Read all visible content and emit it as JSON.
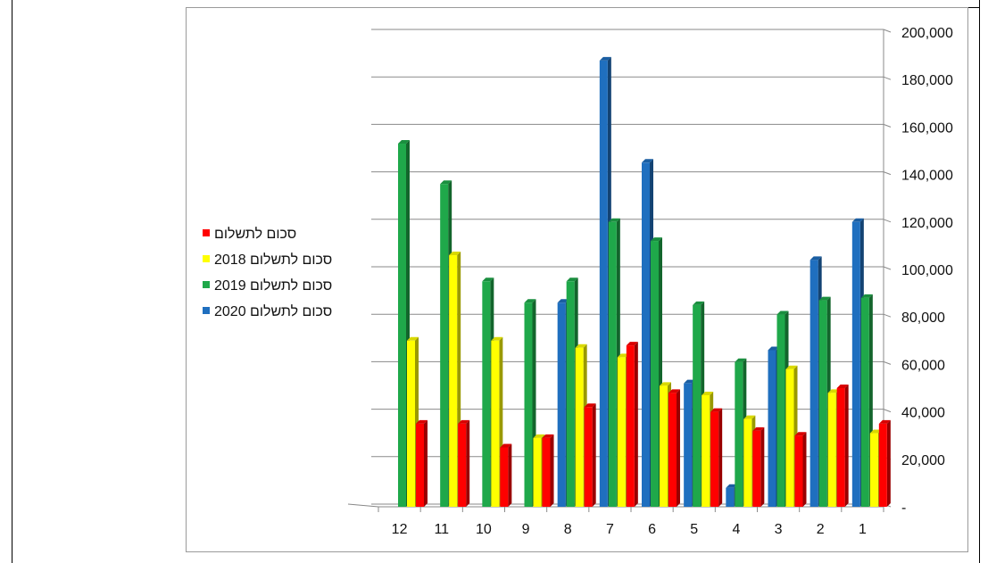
{
  "chart_data": {
    "type": "bar",
    "categories": [
      "12",
      "11",
      "10",
      "9",
      "8",
      "7",
      "6",
      "5",
      "4",
      "3",
      "2",
      "1"
    ],
    "series": [
      {
        "name": "סכום לתשלום 2020",
        "color": "#1f6fbf",
        "values": [
          null,
          null,
          null,
          null,
          86000,
          188000,
          145000,
          52000,
          8000,
          66000,
          104000,
          120000
        ]
      },
      {
        "name": "סכום לתשלום 2019",
        "color": "#1fa84a",
        "values": [
          153000,
          136000,
          95000,
          86000,
          95000,
          120000,
          112000,
          85000,
          61000,
          81000,
          87000,
          88000
        ]
      },
      {
        "name": "סכום לתשלום 2018",
        "color": "#ffff00",
        "values": [
          70000,
          106000,
          70000,
          29000,
          67000,
          63000,
          51000,
          47000,
          37000,
          58000,
          48000,
          31000
        ]
      },
      {
        "name": "סכום לתשלום",
        "color": "#ff0000",
        "values": [
          35000,
          35000,
          25000,
          29000,
          42000,
          68000,
          48000,
          40000,
          32000,
          30000,
          50000,
          35000
        ]
      }
    ],
    "ylim": [
      0,
      200000
    ],
    "yticks": [
      "-",
      "20,000",
      "40,000",
      "60,000",
      "80,000",
      "100,000",
      "120,000",
      "140,000",
      "160,000",
      "180,000",
      "200,000"
    ],
    "ytick_values": [
      0,
      20000,
      40000,
      60000,
      80000,
      100000,
      120000,
      140000,
      160000,
      180000,
      200000
    ],
    "y_axis_side": "right",
    "grid": true,
    "legend_position": "left",
    "legend": [
      {
        "label": "סכום לתשלום",
        "color": "#ff0000"
      },
      {
        "label": "2018 סכום לתשלום",
        "color": "#ffff00"
      },
      {
        "label": "2019 סכום לתשלום",
        "color": "#1fa84a"
      },
      {
        "label": "2020 סכום לתשלום",
        "color": "#1f6fbf"
      }
    ]
  }
}
